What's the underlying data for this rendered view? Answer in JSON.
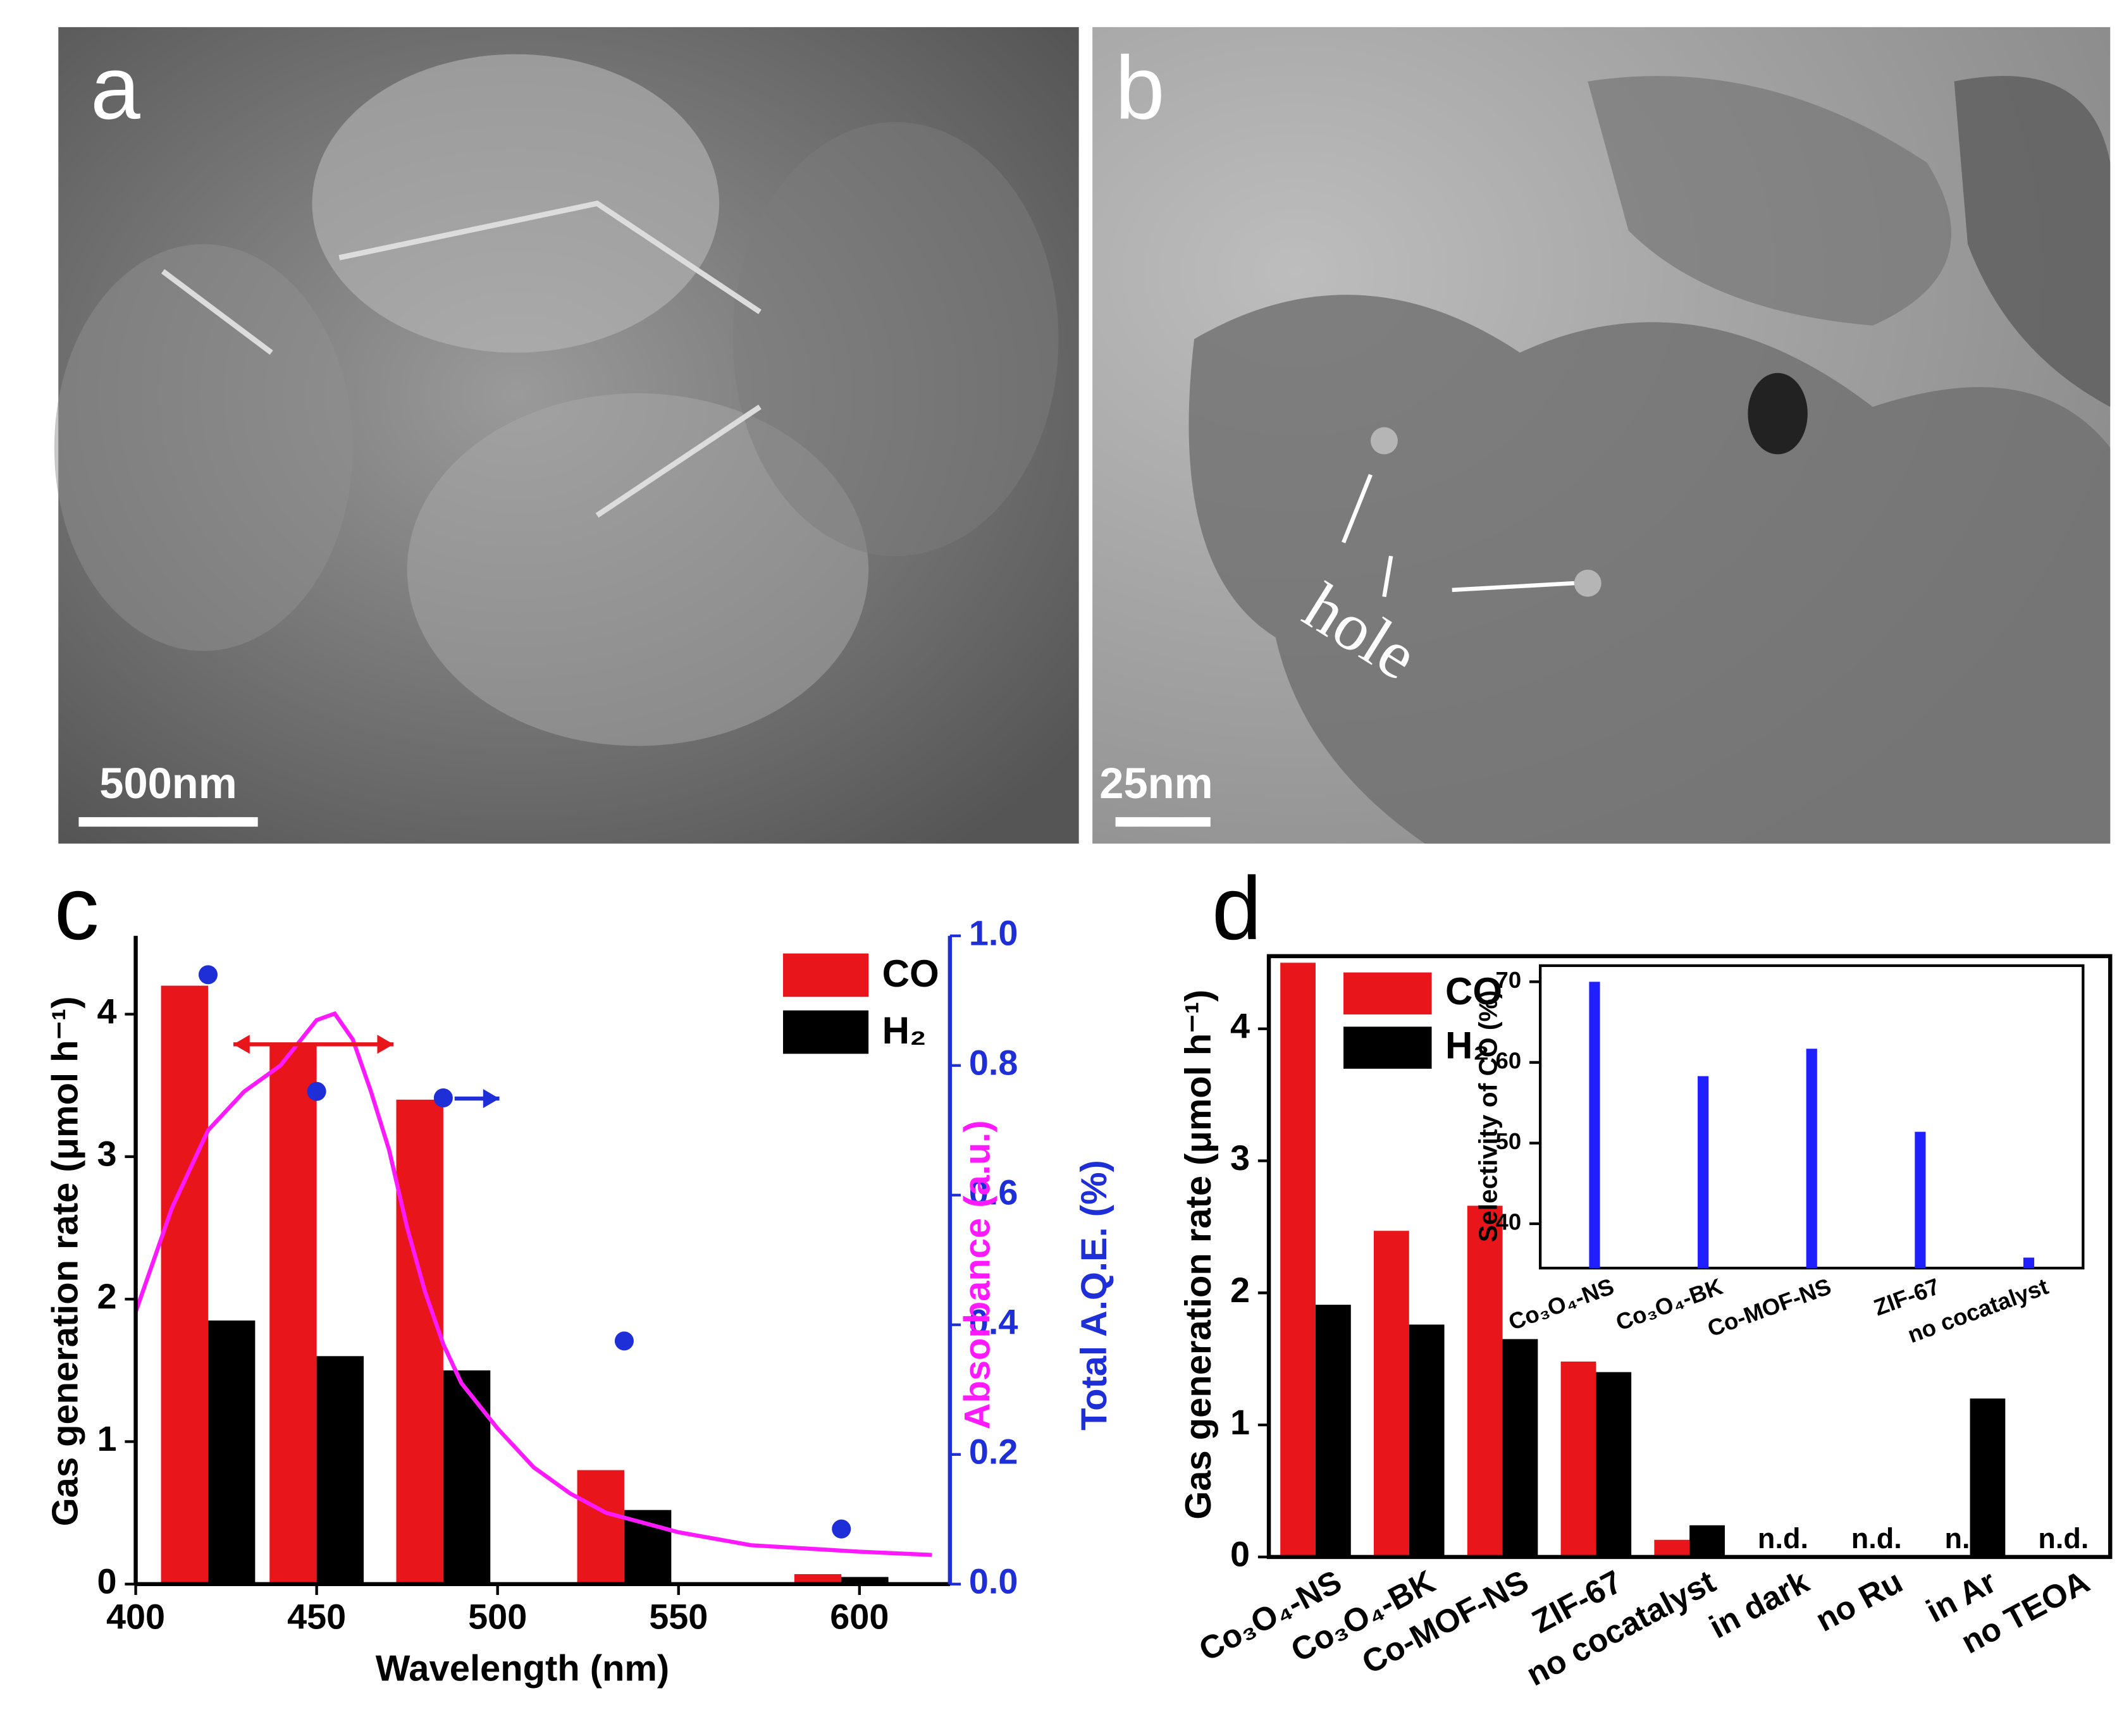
{
  "panels": {
    "a": {
      "label": "a",
      "scale_bar": "500nm"
    },
    "b": {
      "label": "b",
      "scale_bar": "25nm",
      "annotation": "hole"
    }
  },
  "chart_data": [
    {
      "type": "bar",
      "panel_label": "c",
      "x_label": "Wavelength (nm)",
      "y_label": "Gas generation rate (μmol h⁻¹)",
      "y2_labels": [
        "Absorbance (a.u.)",
        "Total A.Q.E. (%)"
      ],
      "x": [
        420,
        450,
        485,
        535,
        595
      ],
      "series": [
        {
          "name": "CO",
          "color": "#e8161b",
          "values": [
            4.2,
            3.8,
            3.4,
            0.8,
            0.07
          ]
        },
        {
          "name": "H₂",
          "color": "#000000",
          "values": [
            1.85,
            1.6,
            1.5,
            0.52,
            0.05
          ]
        }
      ],
      "aqe": {
        "color": "#1f2fd8",
        "axis": "y2",
        "values": [
          0.94,
          0.76,
          0.75,
          0.375,
          0.085
        ]
      },
      "absorbance": {
        "color": "#ff19ff",
        "axis": "y2",
        "x": [
          400,
          410,
          420,
          430,
          440,
          450,
          455,
          460,
          465,
          470,
          475,
          480,
          485,
          490,
          500,
          510,
          520,
          530,
          550,
          570,
          600,
          620
        ],
        "values": [
          0.42,
          0.58,
          0.7,
          0.76,
          0.8,
          0.87,
          0.88,
          0.84,
          0.76,
          0.67,
          0.55,
          0.45,
          0.37,
          0.31,
          0.24,
          0.18,
          0.14,
          0.11,
          0.08,
          0.06,
          0.05,
          0.045
        ]
      },
      "xlim": [
        400,
        625
      ],
      "xticks": [
        400,
        450,
        500,
        550,
        600
      ],
      "ylim": [
        0,
        4.55
      ],
      "yticks": [
        0,
        1,
        2,
        3,
        4
      ],
      "y2lim": [
        0,
        1
      ],
      "y2ticks": [
        {
          "value": 0,
          "label": "0.0"
        },
        0.2,
        0.4,
        0.6,
        0.8,
        {
          "value": 1,
          "label": "1.0"
        }
      ],
      "y2_color": "#1f2fd8"
    },
    {
      "type": "grouped-bar",
      "panel_label": "d",
      "y_label": "Gas generation rate (μmol h⁻¹)",
      "categories": [
        "Co₃O₄-NS",
        "Co₃O₄-BK",
        "Co-MOF-NS",
        "ZIF-67",
        "no cocatalyst",
        "in dark",
        "no Ru",
        "in Ar",
        "no TEOA"
      ],
      "series": [
        {
          "name": "CO",
          "color": "#e8161b",
          "values": [
            4.5,
            2.47,
            2.66,
            1.48,
            0.13,
            null,
            null,
            null,
            null
          ]
        },
        {
          "name": "H₂",
          "color": "#000000",
          "values": [
            1.91,
            1.76,
            1.65,
            1.4,
            0.24,
            null,
            null,
            1.2,
            null
          ]
        }
      ],
      "category_notes": [
        null,
        null,
        null,
        null,
        null,
        "n.d.",
        "n.d.",
        "n.d.",
        "n.d."
      ],
      "ylim": [
        0,
        4.55
      ],
      "yticks": [
        0,
        1,
        2,
        3,
        4
      ]
    },
    {
      "type": "bar",
      "inset": true,
      "y_label": "Selectivity of CO (%)",
      "categories": [
        "Co₃O₄-NS",
        "Co₃O₄-BK",
        "Co-MOF-NS",
        "ZIF-67",
        "no cocatalyst"
      ],
      "values": [
        70,
        58.3,
        61.7,
        51.4,
        35.8
      ],
      "color": "#1f1fff",
      "ylim": [
        34.5,
        72
      ],
      "yticks": [
        40,
        50,
        60,
        70
      ]
    }
  ]
}
